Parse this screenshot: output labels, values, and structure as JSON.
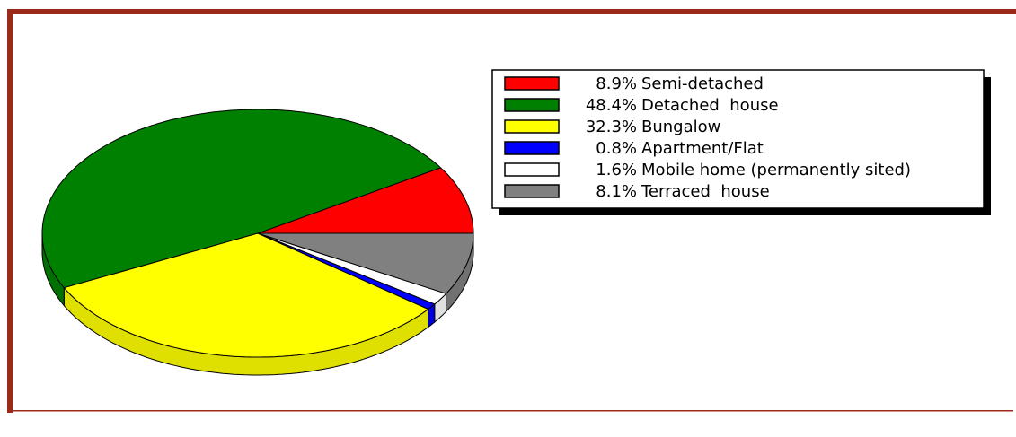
{
  "chart_data": {
    "type": "pie",
    "categories": [
      "Semi-detached",
      "Detached  house",
      "Bungalow",
      "Apartment/Flat",
      "Mobile home (permanently sited)",
      "Terraced  house"
    ],
    "values": [
      8.9,
      48.4,
      32.3,
      0.8,
      1.6,
      8.1
    ],
    "value_labels": [
      "8.9%",
      "48.4%",
      "32.3%",
      "0.8%",
      "1.6%",
      "8.1%"
    ],
    "colors": [
      "#ff0000",
      "#008000",
      "#ffff00",
      "#0000ff",
      "#ffffff",
      "#808080"
    ],
    "legend": "right"
  }
}
